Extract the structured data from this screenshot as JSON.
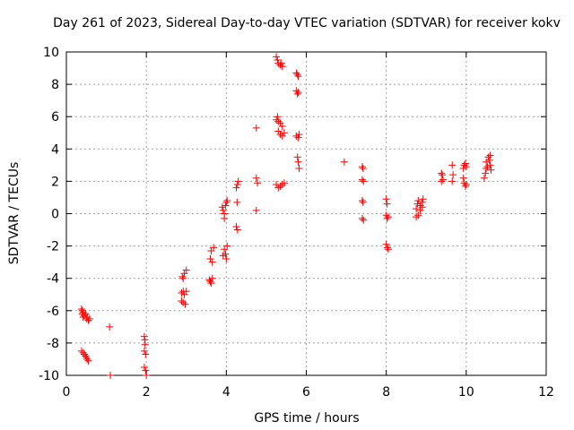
{
  "chart_data": {
    "type": "scatter",
    "title": "Day 261 of 2023, Sidereal Day-to-day VTEC variation (SDTVAR) for receiver kokv",
    "xlabel": "GPS time / hours",
    "ylabel": "SDTVAR / TECUs",
    "xlim": [
      0,
      12
    ],
    "ylim": [
      -10,
      10
    ],
    "xticks": [
      0,
      2,
      4,
      6,
      8,
      10,
      12
    ],
    "yticks": [
      -10,
      -8,
      -6,
      -4,
      -2,
      0,
      2,
      4,
      6,
      8,
      10
    ],
    "grid": true,
    "marker": "+",
    "color": "#ff0000",
    "series": [
      {
        "name": "SDTVAR",
        "points": [
          [
            0.38,
            -5.9
          ],
          [
            0.4,
            -6.0
          ],
          [
            0.4,
            -6.2
          ],
          [
            0.42,
            -6.1
          ],
          [
            0.42,
            -6.4
          ],
          [
            0.45,
            -6.3
          ],
          [
            0.48,
            -6.2
          ],
          [
            0.5,
            -6.5
          ],
          [
            0.52,
            -6.4
          ],
          [
            0.55,
            -6.6
          ],
          [
            0.58,
            -6.5
          ],
          [
            0.38,
            -8.5
          ],
          [
            0.42,
            -8.6
          ],
          [
            0.45,
            -8.7
          ],
          [
            0.48,
            -8.8
          ],
          [
            0.5,
            -8.9
          ],
          [
            0.52,
            -9.0
          ],
          [
            0.55,
            -9.1
          ],
          [
            1.08,
            -7.0
          ],
          [
            1.1,
            -10.0
          ],
          [
            1.95,
            -7.6
          ],
          [
            1.96,
            -7.8
          ],
          [
            1.97,
            -8.1
          ],
          [
            1.95,
            -8.5
          ],
          [
            1.98,
            -8.7
          ],
          [
            1.95,
            -9.5
          ],
          [
            1.98,
            -9.7
          ],
          [
            2.0,
            -10.0
          ],
          [
            2.9,
            -3.9
          ],
          [
            2.92,
            -4.0
          ],
          [
            2.95,
            -3.7
          ],
          [
            3.0,
            -3.5
          ],
          [
            2.88,
            -4.9
          ],
          [
            2.92,
            -4.8
          ],
          [
            2.95,
            -5.0
          ],
          [
            3.0,
            -4.8
          ],
          [
            2.88,
            -5.4
          ],
          [
            2.92,
            -5.5
          ],
          [
            2.97,
            -5.6
          ],
          [
            3.58,
            -4.1
          ],
          [
            3.6,
            -4.2
          ],
          [
            3.62,
            -4.3
          ],
          [
            3.65,
            -4.0
          ],
          [
            3.6,
            -2.8
          ],
          [
            3.65,
            -3.0
          ],
          [
            3.62,
            -2.3
          ],
          [
            3.68,
            -2.1
          ],
          [
            3.9,
            0.4
          ],
          [
            3.92,
            0.2
          ],
          [
            3.95,
            0.0
          ],
          [
            3.95,
            -0.3
          ],
          [
            3.98,
            0.5
          ],
          [
            4.0,
            0.7
          ],
          [
            4.02,
            0.8
          ],
          [
            3.95,
            -2.2
          ],
          [
            3.98,
            -2.5
          ],
          [
            4.0,
            -2.8
          ],
          [
            4.02,
            -2.0
          ],
          [
            3.92,
            -2.6
          ],
          [
            4.25,
            1.6
          ],
          [
            4.28,
            1.8
          ],
          [
            4.3,
            2.0
          ],
          [
            4.27,
            0.7
          ],
          [
            4.25,
            -0.8
          ],
          [
            4.28,
            -1.0
          ],
          [
            4.75,
            5.3
          ],
          [
            4.75,
            2.2
          ],
          [
            4.78,
            1.9
          ],
          [
            4.75,
            0.2
          ],
          [
            5.25,
            9.7
          ],
          [
            5.28,
            9.5
          ],
          [
            5.3,
            9.3
          ],
          [
            5.35,
            9.2
          ],
          [
            5.4,
            9.1
          ],
          [
            5.38,
            9.3
          ],
          [
            5.25,
            5.8
          ],
          [
            5.28,
            6.0
          ],
          [
            5.3,
            5.7
          ],
          [
            5.35,
            5.6
          ],
          [
            5.3,
            5.1
          ],
          [
            5.35,
            4.9
          ],
          [
            5.4,
            4.8
          ],
          [
            5.45,
            5.0
          ],
          [
            5.4,
            5.4
          ],
          [
            5.25,
            1.8
          ],
          [
            5.3,
            1.6
          ],
          [
            5.35,
            1.7
          ],
          [
            5.4,
            1.8
          ],
          [
            5.45,
            1.9
          ],
          [
            5.75,
            8.7
          ],
          [
            5.78,
            8.6
          ],
          [
            5.8,
            8.5
          ],
          [
            5.75,
            7.6
          ],
          [
            5.78,
            7.4
          ],
          [
            5.8,
            7.5
          ],
          [
            5.75,
            4.8
          ],
          [
            5.8,
            4.7
          ],
          [
            5.82,
            4.9
          ],
          [
            5.78,
            3.5
          ],
          [
            5.8,
            3.2
          ],
          [
            5.82,
            2.8
          ],
          [
            6.95,
            3.2
          ],
          [
            7.4,
            2.9
          ],
          [
            7.42,
            2.8
          ],
          [
            7.4,
            2.1
          ],
          [
            7.43,
            2.0
          ],
          [
            7.4,
            0.8
          ],
          [
            7.42,
            0.7
          ],
          [
            7.4,
            -0.3
          ],
          [
            7.43,
            -0.4
          ],
          [
            8.0,
            0.9
          ],
          [
            8.02,
            0.6
          ],
          [
            8.0,
            -0.1
          ],
          [
            8.02,
            -0.3
          ],
          [
            8.05,
            -0.2
          ],
          [
            8.0,
            -1.9
          ],
          [
            8.03,
            -2.1
          ],
          [
            8.05,
            -2.2
          ],
          [
            8.75,
            0.3
          ],
          [
            8.78,
            0.6
          ],
          [
            8.8,
            0.8
          ],
          [
            8.85,
            0.5
          ],
          [
            8.9,
            0.7
          ],
          [
            8.92,
            0.9
          ],
          [
            8.75,
            -0.2
          ],
          [
            8.8,
            -0.1
          ],
          [
            8.85,
            0.2
          ],
          [
            8.9,
            0.4
          ],
          [
            9.38,
            2.5
          ],
          [
            9.4,
            2.4
          ],
          [
            9.38,
            2.0
          ],
          [
            9.42,
            2.1
          ],
          [
            9.65,
            3.0
          ],
          [
            9.67,
            2.4
          ],
          [
            9.65,
            2.0
          ],
          [
            9.93,
            2.8
          ],
          [
            9.95,
            3.0
          ],
          [
            9.98,
            3.1
          ],
          [
            10.0,
            2.9
          ],
          [
            9.93,
            2.2
          ],
          [
            9.95,
            1.9
          ],
          [
            9.98,
            1.7
          ],
          [
            10.0,
            1.8
          ],
          [
            10.45,
            2.2
          ],
          [
            10.48,
            2.5
          ],
          [
            10.5,
            2.8
          ],
          [
            10.5,
            3.2
          ],
          [
            10.53,
            2.9
          ],
          [
            10.55,
            3.5
          ],
          [
            10.58,
            3.3
          ],
          [
            10.6,
            3.0
          ],
          [
            10.62,
            2.7
          ],
          [
            10.6,
            3.6
          ]
        ]
      }
    ]
  }
}
